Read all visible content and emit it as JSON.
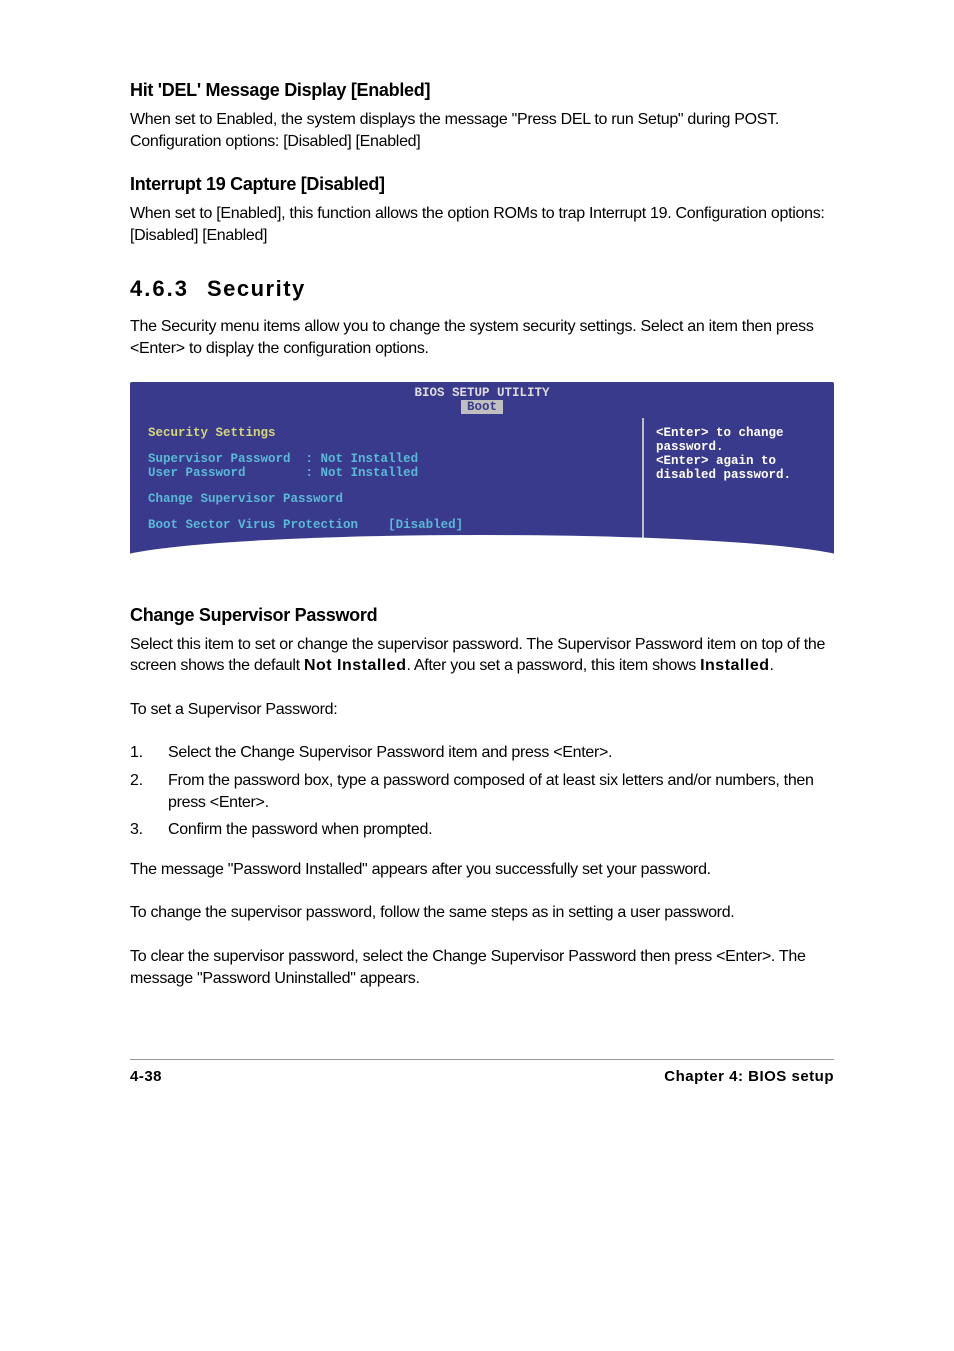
{
  "section1": {
    "heading": "Hit 'DEL' Message Display [Enabled]",
    "body": "When set to Enabled, the system displays the message \"Press DEL to run Setup\" during POST. Configuration options: [Disabled] [Enabled]"
  },
  "section2": {
    "heading": "Interrupt 19 Capture [Disabled]",
    "body": "When set to [Enabled], this function allows the option ROMs to trap Interrupt 19. Configuration options: [Disabled] [Enabled]"
  },
  "section3": {
    "number": "4.6.3",
    "title": "Security",
    "intro": "The Security menu items allow you to change the system security settings. Select an item then press <Enter> to display the configuration options."
  },
  "bios": {
    "title": "BIOS SETUP UTILITY",
    "tab": "Boot",
    "left": {
      "header": "Security Settings",
      "sup_label": "Supervisor Password",
      "sup_value": ": Not Installed",
      "user_label": "User Password",
      "user_value": ": Not Installed",
      "change": "Change Supervisor Password",
      "bsvp_label": "Boot Sector Virus Protection",
      "bsvp_value": "[Disabled]"
    },
    "right": {
      "line": "<Enter> to change password.\n<Enter> again to disabled password."
    },
    "colors": {
      "background": "#3a3a8c",
      "text_primary": "#ffffff",
      "text_cyan": "#59b9d6",
      "text_yellow": "#d6d67a",
      "divider": "#c0c0c0"
    }
  },
  "section4": {
    "heading": "Change Supervisor Password",
    "p1_a": "Select this item to set or change the supervisor password. The Supervisor Password item on top of the screen shows the default ",
    "p1_b": "Not Installed",
    "p1_c": ". After you set a password, this item shows ",
    "p1_d": "Installed",
    "p1_e": ".",
    "p2": "To set a Supervisor Password:",
    "steps": [
      {
        "n": "1.",
        "t": "Select the Change Supervisor Password item and press <Enter>."
      },
      {
        "n": "2.",
        "t": "From the password box, type a password composed of at least six letters and/or numbers, then press <Enter>."
      },
      {
        "n": "3.",
        "t": "Confirm the password when prompted."
      }
    ],
    "p3": "The message \"Password Installed\" appears after you successfully set your password.",
    "p4": "To change the supervisor password, follow the same steps as in setting a user password.",
    "p5": "To clear the supervisor password, select the Change Supervisor Password then press <Enter>. The message \"Password Uninstalled\" appears."
  },
  "footer": {
    "left": "4-38",
    "right": "Chapter 4: BIOS setup"
  }
}
